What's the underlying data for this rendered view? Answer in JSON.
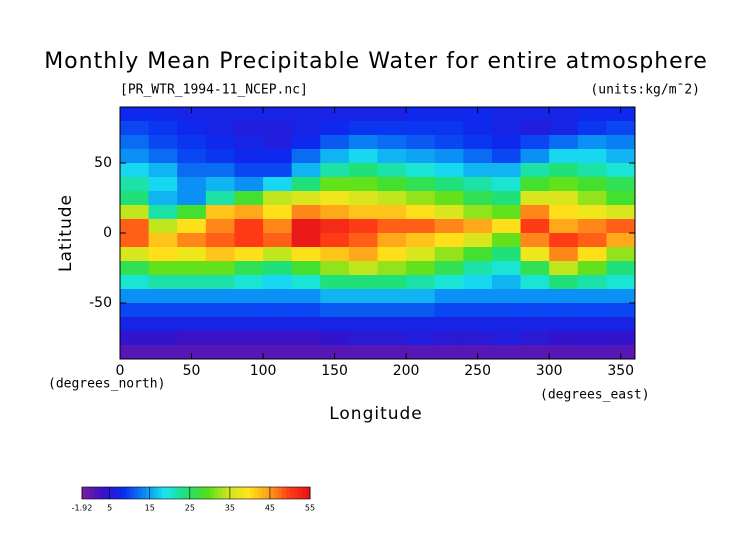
{
  "chart_data": {
    "type": "contour",
    "title": "Monthly Mean Precipitable Water for entire atmosphere",
    "subtitle": "[PR_WTR_1994-11_NCEP.nc]",
    "units": "(units:kg/m¯2)",
    "x_label": "Longitude",
    "y_label": "Latitude",
    "x_unit": "(degrees_east)",
    "y_unit": "(degrees_north)",
    "xlim": [
      0,
      360
    ],
    "ylim": [
      -90,
      90
    ],
    "xticks": [
      0,
      50,
      100,
      150,
      200,
      250,
      300,
      350
    ],
    "yticks": [
      -50,
      0,
      50
    ],
    "x": [
      10,
      30,
      50,
      70,
      90,
      110,
      130,
      150,
      170,
      190,
      210,
      230,
      250,
      270,
      290,
      310,
      330,
      350
    ],
    "y": [
      85,
      75,
      65,
      55,
      45,
      35,
      25,
      15,
      5,
      -5,
      -15,
      -25,
      -35,
      -45,
      -55,
      -65,
      -75,
      -85
    ],
    "z": [
      [
        8,
        8,
        7,
        7,
        7,
        7,
        7,
        7,
        7,
        7,
        8,
        8,
        8,
        7,
        7,
        7,
        8,
        8
      ],
      [
        10,
        9,
        8,
        7,
        6,
        6,
        7,
        8,
        9,
        9,
        9,
        9,
        8,
        7,
        6,
        7,
        9,
        10
      ],
      [
        12,
        10,
        9,
        8,
        7,
        6,
        8,
        11,
        13,
        12,
        11,
        10,
        9,
        8,
        10,
        12,
        14,
        13
      ],
      [
        14,
        12,
        10,
        9,
        8,
        8,
        12,
        16,
        18,
        16,
        15,
        14,
        12,
        10,
        14,
        18,
        18,
        16
      ],
      [
        18,
        16,
        12,
        12,
        10,
        10,
        16,
        22,
        24,
        22,
        20,
        18,
        16,
        16,
        22,
        24,
        22,
        20
      ],
      [
        22,
        18,
        14,
        16,
        14,
        18,
        24,
        30,
        30,
        28,
        26,
        24,
        22,
        20,
        28,
        30,
        28,
        26
      ],
      [
        24,
        16,
        14,
        22,
        28,
        34,
        36,
        38,
        36,
        34,
        32,
        30,
        26,
        24,
        36,
        36,
        32,
        28
      ],
      [
        34,
        22,
        28,
        42,
        44,
        40,
        46,
        44,
        42,
        42,
        40,
        36,
        32,
        30,
        46,
        40,
        38,
        36
      ],
      [
        48,
        34,
        40,
        46,
        50,
        46,
        54,
        52,
        50,
        48,
        48,
        46,
        44,
        40,
        50,
        44,
        46,
        48
      ],
      [
        48,
        42,
        46,
        48,
        50,
        48,
        54,
        50,
        48,
        44,
        42,
        40,
        36,
        30,
        46,
        50,
        48,
        44
      ],
      [
        36,
        40,
        38,
        42,
        40,
        34,
        40,
        42,
        44,
        40,
        36,
        32,
        28,
        24,
        38,
        46,
        40,
        32
      ],
      [
        26,
        30,
        30,
        30,
        26,
        24,
        28,
        32,
        34,
        32,
        30,
        26,
        22,
        20,
        26,
        34,
        30,
        24
      ],
      [
        20,
        22,
        22,
        22,
        20,
        18,
        20,
        24,
        24,
        24,
        22,
        20,
        18,
        16,
        20,
        24,
        22,
        20
      ],
      [
        14,
        14,
        14,
        14,
        14,
        14,
        14,
        16,
        16,
        16,
        16,
        14,
        14,
        14,
        14,
        14,
        14,
        14
      ],
      [
        10,
        10,
        10,
        10,
        10,
        10,
        10,
        11,
        11,
        11,
        11,
        10,
        10,
        10,
        10,
        10,
        10,
        10
      ],
      [
        7,
        7,
        7,
        7,
        7,
        7,
        7,
        7,
        7,
        7,
        7,
        7,
        7,
        7,
        7,
        7,
        7,
        7
      ],
      [
        4,
        4,
        3,
        3,
        3,
        3,
        3,
        4,
        5,
        5,
        6,
        5,
        5,
        6,
        5,
        4,
        4,
        4
      ],
      [
        1,
        1,
        1,
        1,
        1,
        1,
        1,
        1,
        1,
        1,
        1,
        1,
        1,
        1,
        1,
        1,
        1,
        1
      ]
    ],
    "clim": [
      -1.92,
      55
    ],
    "colorbar_ticks": [
      -1.92,
      5,
      15,
      25,
      35,
      45,
      55
    ],
    "colors": [
      "#7a1fa0",
      "#3a10c8",
      "#0a2af0",
      "#0a8af5",
      "#19e5f0",
      "#1fe07a",
      "#4ee01a",
      "#c8e61e",
      "#ffe61a",
      "#ffa01a",
      "#ff3c14",
      "#e8101a"
    ]
  }
}
